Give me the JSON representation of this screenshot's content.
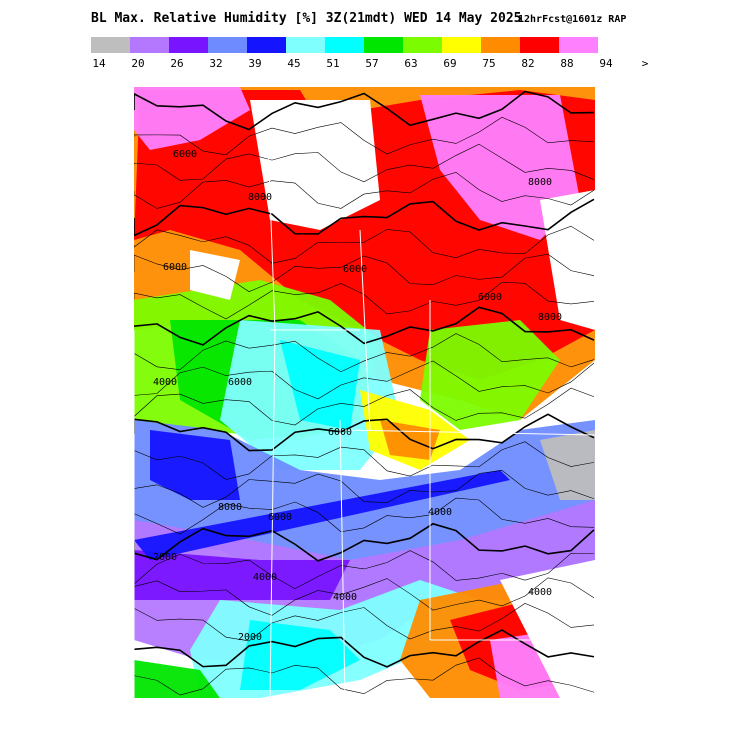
{
  "header": {
    "title": "BL Max. Relative Humidity [%] 3Z(21mdt) WED 14 May 2025",
    "forecast": "12hrFcst@1601z RAP"
  },
  "legend": {
    "colors": [
      "#bebebe",
      "#b478ff",
      "#7814ff",
      "#6e8cff",
      "#1414ff",
      "#80ffff",
      "#00ffff",
      "#00e600",
      "#7cfc00",
      "#ffff00",
      "#ff8c00",
      "#ff0000",
      "#ff80ff"
    ],
    "labels": [
      "14",
      "20",
      "26",
      "32",
      "39",
      "45",
      "51",
      "57",
      "63",
      "69",
      "75",
      "82",
      "88",
      "94",
      ">"
    ]
  },
  "map": {
    "contour_labels": [
      "6000",
      "8000",
      "6000",
      "6000",
      "8000",
      "4000",
      "6000",
      "6000",
      "6000",
      "2000",
      "8000",
      "4000",
      "6000",
      "2000",
      "4000",
      "4000",
      "8000",
      "4000"
    ]
  }
}
